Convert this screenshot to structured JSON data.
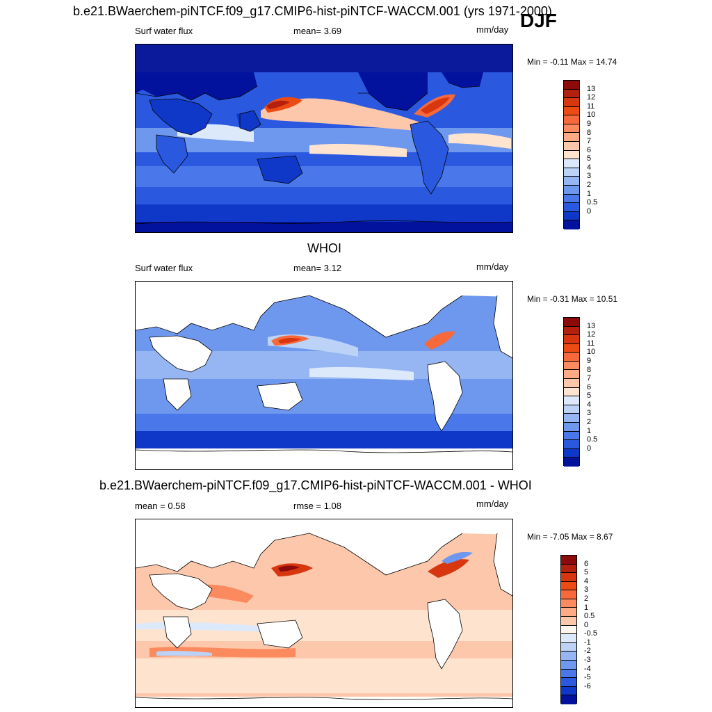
{
  "season": "DJF",
  "panels": [
    {
      "title": "b.e21.BWaerchem-piNTCF.f09_g17.CMIP6-hist-piNTCF-WACCM.001 (yrs 1971-2000)",
      "left_label": "Surf water flux",
      "center_label": "mean=   3.69",
      "units": "mm/day",
      "minmax": "Min =  -0.11 Max =  14.74",
      "colorbar_labels": [
        "13",
        "12",
        "11",
        "10",
        "9",
        "8",
        "7",
        "6",
        "5",
        "4",
        "3",
        "2",
        "1",
        "0.5",
        "0"
      ],
      "colorbar_colors": [
        "#8b0a0a",
        "#b3200e",
        "#d8360f",
        "#ee4a14",
        "#f7693a",
        "#fb8b5e",
        "#fdaa85",
        "#fdc7ab",
        "#fee3cf",
        "#dce9fb",
        "#bcd3f7",
        "#95b6f2",
        "#6e97ee",
        "#4a78ea",
        "#2a59e0",
        "#1038c8",
        "#03129c"
      ]
    },
    {
      "title": "WHOI",
      "left_label": "Surf water flux",
      "center_label": "mean=   3.12",
      "units": "mm/day",
      "minmax": "Min =  -0.31 Max =  10.51",
      "colorbar_labels": [
        "13",
        "12",
        "11",
        "10",
        "9",
        "8",
        "7",
        "6",
        "5",
        "4",
        "3",
        "2",
        "1",
        "0.5",
        "0"
      ],
      "colorbar_colors": [
        "#8b0a0a",
        "#b3200e",
        "#d8360f",
        "#ee4a14",
        "#f7693a",
        "#fb8b5e",
        "#fdaa85",
        "#fdc7ab",
        "#fee3cf",
        "#dce9fb",
        "#bcd3f7",
        "#95b6f2",
        "#6e97ee",
        "#4a78ea",
        "#2a59e0",
        "#1038c8",
        "#03129c"
      ]
    },
    {
      "title": "b.e21.BWaerchem-piNTCF.f09_g17.CMIP6-hist-piNTCF-WACCM.001 - WHOI",
      "left_label": "mean =   0.58",
      "center_label": "rmse =   1.08",
      "units": "mm/day",
      "minmax": "Min =  -7.05 Max =   8.67",
      "colorbar_labels": [
        "6",
        "5",
        "4",
        "3",
        "2",
        "1",
        "0.5",
        "0",
        "-0.5",
        "-1",
        "-2",
        "-3",
        "-4",
        "-5",
        "-6"
      ],
      "colorbar_colors": [
        "#8b0a0a",
        "#b3200e",
        "#d8360f",
        "#ee4a14",
        "#f7693a",
        "#fb8b5e",
        "#fdaa85",
        "#fdc7ab",
        "#fff6ee",
        "#dce9fb",
        "#bcd3f7",
        "#95b6f2",
        "#6e97ee",
        "#4a78ea",
        "#2a59e0",
        "#1038c8",
        "#03129c"
      ]
    }
  ]
}
